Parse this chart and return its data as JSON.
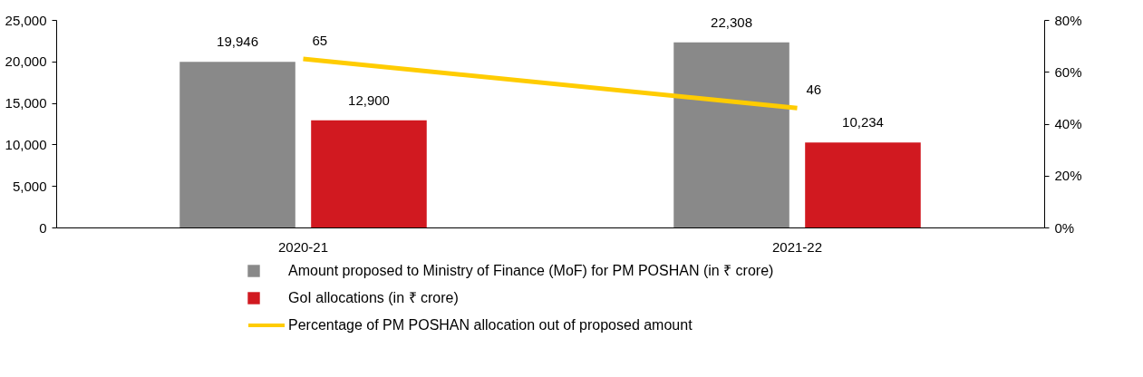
{
  "chart_data": {
    "type": "bar",
    "categories": [
      "2020-21",
      "2021-22"
    ],
    "series": [
      {
        "name": "Amount proposed to Ministry of Finance (MoF) for PM POSHAN (in ₹ crore)",
        "color": "#898989",
        "values": [
          19946,
          22308
        ],
        "value_labels": [
          "19,946",
          "22,308"
        ]
      },
      {
        "name": "GoI allocations (in ₹ crore)",
        "color": "#d11920",
        "values": [
          12900,
          10234
        ],
        "value_labels": [
          "12,900",
          "10,234"
        ]
      },
      {
        "name": "Percentage of PM POSHAN allocation out of proposed amount",
        "color": "#ffcc00",
        "type": "line",
        "axis": "y2",
        "marker": "none",
        "values": [
          65,
          46
        ],
        "value_labels": [
          "65",
          "46"
        ]
      }
    ],
    "ylim": [
      0,
      25000
    ],
    "yticks": [
      0,
      {
        "value": 5000,
        "label": "5,000"
      },
      {
        "value": 10000,
        "label": "10,000"
      },
      {
        "value": 15000,
        "label": "15,000"
      },
      {
        "value": 20000,
        "label": "20,000"
      },
      {
        "value": 25000,
        "label": "25,000"
      }
    ],
    "y2lim": [
      0,
      80
    ],
    "y2ticks": [
      {
        "value": 0,
        "label": "0%"
      },
      {
        "value": 20,
        "label": "20%"
      },
      {
        "value": 40,
        "label": "40%"
      },
      {
        "value": 60,
        "label": "60%"
      },
      {
        "value": 80,
        "label": "80%"
      }
    ],
    "grid": false,
    "legend": "bottom"
  }
}
